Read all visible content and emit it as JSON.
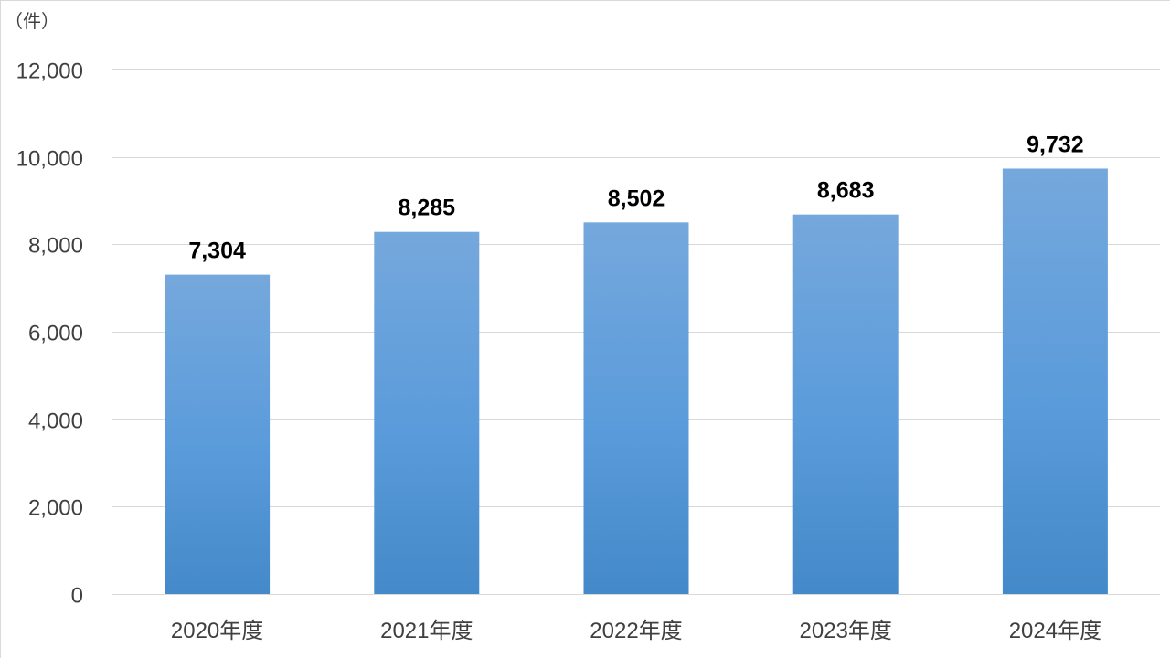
{
  "chart_data": {
    "type": "bar",
    "unit_label": "（件）",
    "categories": [
      "2020年度",
      "2021年度",
      "2022年度",
      "2023年度",
      "2024年度"
    ],
    "values": [
      7304,
      8285,
      8502,
      8683,
      9732
    ],
    "value_labels": [
      "7,304",
      "8,285",
      "8,502",
      "8,683",
      "9,732"
    ],
    "ylim": [
      0,
      12000
    ],
    "y_ticks": [
      0,
      2000,
      4000,
      6000,
      8000,
      10000,
      12000
    ],
    "y_tick_labels": [
      "0",
      "2,000",
      "4,000",
      "6,000",
      "8,000",
      "10,000",
      "12,000"
    ],
    "grid": true,
    "legend": "none",
    "bar_color_top": "#75a8dc",
    "bar_color_bottom": "#4489c9"
  }
}
